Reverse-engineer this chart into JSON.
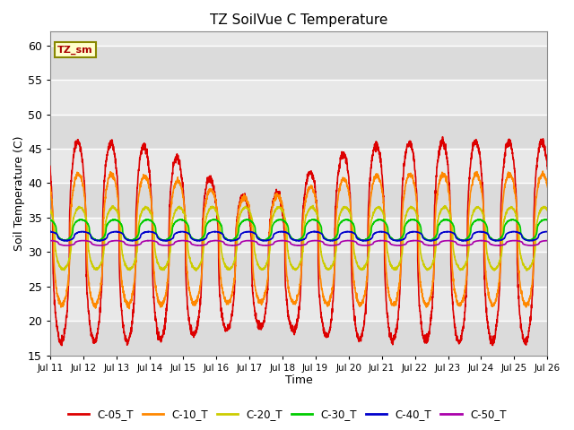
{
  "title": "TZ SoilVue C Temperature",
  "xlabel": "Time",
  "ylabel": "Soil Temperature (C)",
  "ylim": [
    15,
    62
  ],
  "xlim": [
    0,
    360
  ],
  "plot_bg_light": "#e8e8e8",
  "plot_bg_dark": "#d8d8d8",
  "legend_label": "TZ_sm",
  "series_order": [
    "C-05_T",
    "C-10_T",
    "C-20_T",
    "C-30_T",
    "C-40_T",
    "C-50_T"
  ],
  "series": {
    "C-05_T": {
      "color": "#dd0000",
      "base": 31.5,
      "amp": 14.5,
      "phase_hr": 14.0,
      "min_day": 7.0
    },
    "C-10_T": {
      "color": "#ff8800",
      "base": 31.8,
      "amp": 9.5,
      "phase_hr": 14.5
    },
    "C-20_T": {
      "color": "#cccc00",
      "base": 32.0,
      "amp": 4.5,
      "phase_hr": 15.5
    },
    "C-30_T": {
      "color": "#00cc00",
      "base": 33.2,
      "amp": 1.5,
      "phase_hr": 16.5
    },
    "C-40_T": {
      "color": "#0000cc",
      "base": 32.3,
      "amp": 0.65,
      "phase_hr": 17.5
    },
    "C-50_T": {
      "color": "#aa00aa",
      "base": 31.3,
      "amp": 0.35,
      "phase_hr": 18.0
    }
  },
  "x_tick_labels": [
    "Jul 11",
    "Jul 12",
    "Jul 13",
    "Jul 14",
    "Jul 15",
    "Jul 16",
    "Jul 17",
    "Jul 18",
    "Jul 19",
    "Jul 20",
    "Jul 21",
    "Jul 22",
    "Jul 23",
    "Jul 24",
    "Jul 25",
    "Jul 26"
  ],
  "x_tick_positions": [
    0,
    24,
    48,
    72,
    96,
    120,
    144,
    168,
    192,
    216,
    240,
    264,
    288,
    312,
    336,
    360
  ],
  "n_points": 2880,
  "period": 24,
  "line_width": 1.2
}
